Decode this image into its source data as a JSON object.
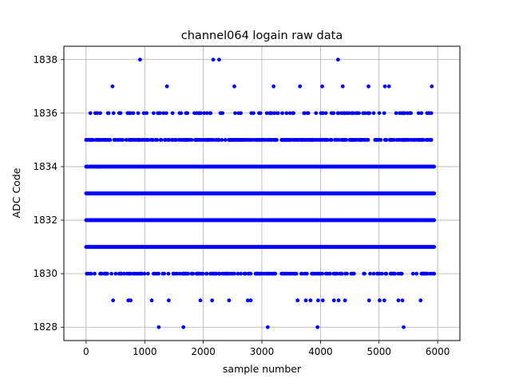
{
  "chart_data": {
    "type": "scatter",
    "title": "channel064 logain raw data",
    "xlabel": "sample number",
    "ylabel": "ADC Code",
    "xlim": [
      -380,
      6380
    ],
    "ylim": [
      1827.5,
      1838.5
    ],
    "xticks": [
      0,
      1000,
      2000,
      3000,
      4000,
      5000,
      6000
    ],
    "yticks": [
      1828,
      1830,
      1832,
      1834,
      1836,
      1838
    ],
    "grid": true,
    "marker_color": "#0000ff",
    "x_range": [
      0,
      5940
    ],
    "dense_levels": [
      {
        "y": 1836,
        "density": 0.25
      },
      {
        "y": 1835,
        "density": 0.55
      },
      {
        "y": 1834,
        "density": 1.0
      },
      {
        "y": 1833,
        "density": 1.0
      },
      {
        "y": 1832,
        "density": 1.0
      },
      {
        "y": 1831,
        "density": 1.0
      },
      {
        "y": 1830,
        "density": 0.35
      }
    ],
    "sparse_points": [
      {
        "x": 920,
        "y": 1838
      },
      {
        "x": 2170,
        "y": 1838
      },
      {
        "x": 2270,
        "y": 1838
      },
      {
        "x": 4300,
        "y": 1838
      },
      {
        "x": 450,
        "y": 1837
      },
      {
        "x": 1380,
        "y": 1837
      },
      {
        "x": 2530,
        "y": 1837
      },
      {
        "x": 3200,
        "y": 1837
      },
      {
        "x": 3650,
        "y": 1837
      },
      {
        "x": 4030,
        "y": 1837
      },
      {
        "x": 4380,
        "y": 1837
      },
      {
        "x": 4820,
        "y": 1837
      },
      {
        "x": 5100,
        "y": 1837
      },
      {
        "x": 5170,
        "y": 1837
      },
      {
        "x": 5900,
        "y": 1837
      },
      {
        "x": 460,
        "y": 1829
      },
      {
        "x": 720,
        "y": 1829
      },
      {
        "x": 760,
        "y": 1829
      },
      {
        "x": 1120,
        "y": 1829
      },
      {
        "x": 1410,
        "y": 1829
      },
      {
        "x": 1950,
        "y": 1829
      },
      {
        "x": 2150,
        "y": 1829
      },
      {
        "x": 2440,
        "y": 1829
      },
      {
        "x": 2760,
        "y": 1829
      },
      {
        "x": 2810,
        "y": 1829
      },
      {
        "x": 3610,
        "y": 1829
      },
      {
        "x": 3750,
        "y": 1829
      },
      {
        "x": 3830,
        "y": 1829
      },
      {
        "x": 3960,
        "y": 1829
      },
      {
        "x": 4040,
        "y": 1829
      },
      {
        "x": 4230,
        "y": 1829
      },
      {
        "x": 4310,
        "y": 1829
      },
      {
        "x": 4420,
        "y": 1829
      },
      {
        "x": 4830,
        "y": 1829
      },
      {
        "x": 5010,
        "y": 1829
      },
      {
        "x": 5090,
        "y": 1829
      },
      {
        "x": 5330,
        "y": 1829
      },
      {
        "x": 5400,
        "y": 1829
      },
      {
        "x": 5710,
        "y": 1829
      },
      {
        "x": 1240,
        "y": 1828
      },
      {
        "x": 1660,
        "y": 1828
      },
      {
        "x": 3100,
        "y": 1828
      },
      {
        "x": 3950,
        "y": 1828
      },
      {
        "x": 5420,
        "y": 1828
      }
    ]
  }
}
